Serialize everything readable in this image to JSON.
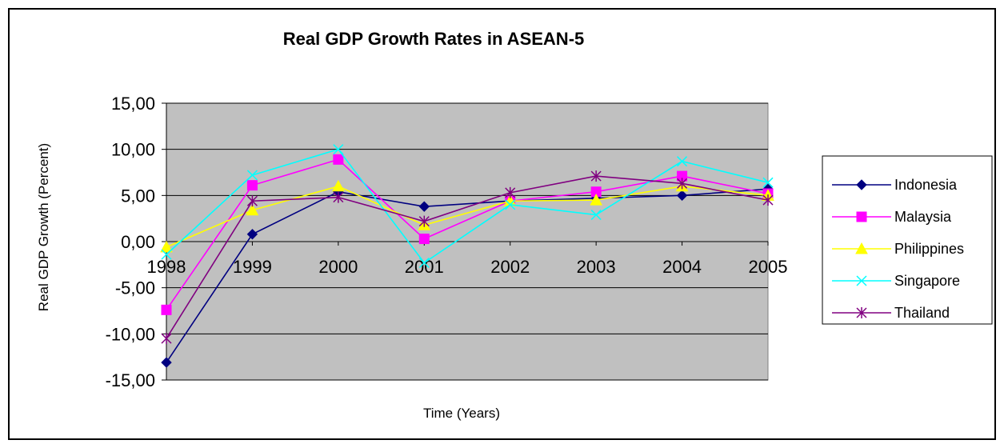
{
  "chart_data": {
    "type": "line",
    "title": "Real GDP Growth Rates in ASEAN-5",
    "xlabel": "Time (Years)",
    "ylabel": "Real GDP Growth (Percent)",
    "categories": [
      "1998",
      "1999",
      "2000",
      "2001",
      "2002",
      "2003",
      "2004",
      "2005"
    ],
    "ylim": [
      -15,
      15
    ],
    "yticks": [
      "15,00",
      "10,00",
      "5,00",
      "0,00",
      "-5,00",
      "-10,00",
      "-15,00"
    ],
    "grid": true,
    "legend_position": "right",
    "plot_background": "#C0C0C0",
    "series": [
      {
        "name": "Indonesia",
        "color": "#000080",
        "marker": "diamond",
        "values": [
          -13.1,
          0.8,
          5.4,
          3.8,
          4.4,
          4.7,
          5.0,
          5.7
        ]
      },
      {
        "name": "Malaysia",
        "color": "#FF00FF",
        "marker": "square",
        "values": [
          -7.4,
          6.1,
          8.9,
          0.3,
          4.4,
          5.4,
          7.1,
          5.2
        ]
      },
      {
        "name": "Philippines",
        "color": "#FFFF00",
        "marker": "triangle",
        "values": [
          -0.6,
          3.4,
          6.0,
          1.8,
          4.4,
          4.5,
          6.0,
          5.0
        ]
      },
      {
        "name": "Singapore",
        "color": "#00FFFF",
        "marker": "x",
        "values": [
          -1.4,
          7.2,
          10.0,
          -2.3,
          4.0,
          2.9,
          8.7,
          6.4
        ]
      },
      {
        "name": "Thailand",
        "color": "#800080",
        "marker": "asterisk",
        "values": [
          -10.5,
          4.4,
          4.8,
          2.2,
          5.3,
          7.1,
          6.3,
          4.5
        ]
      }
    ]
  }
}
